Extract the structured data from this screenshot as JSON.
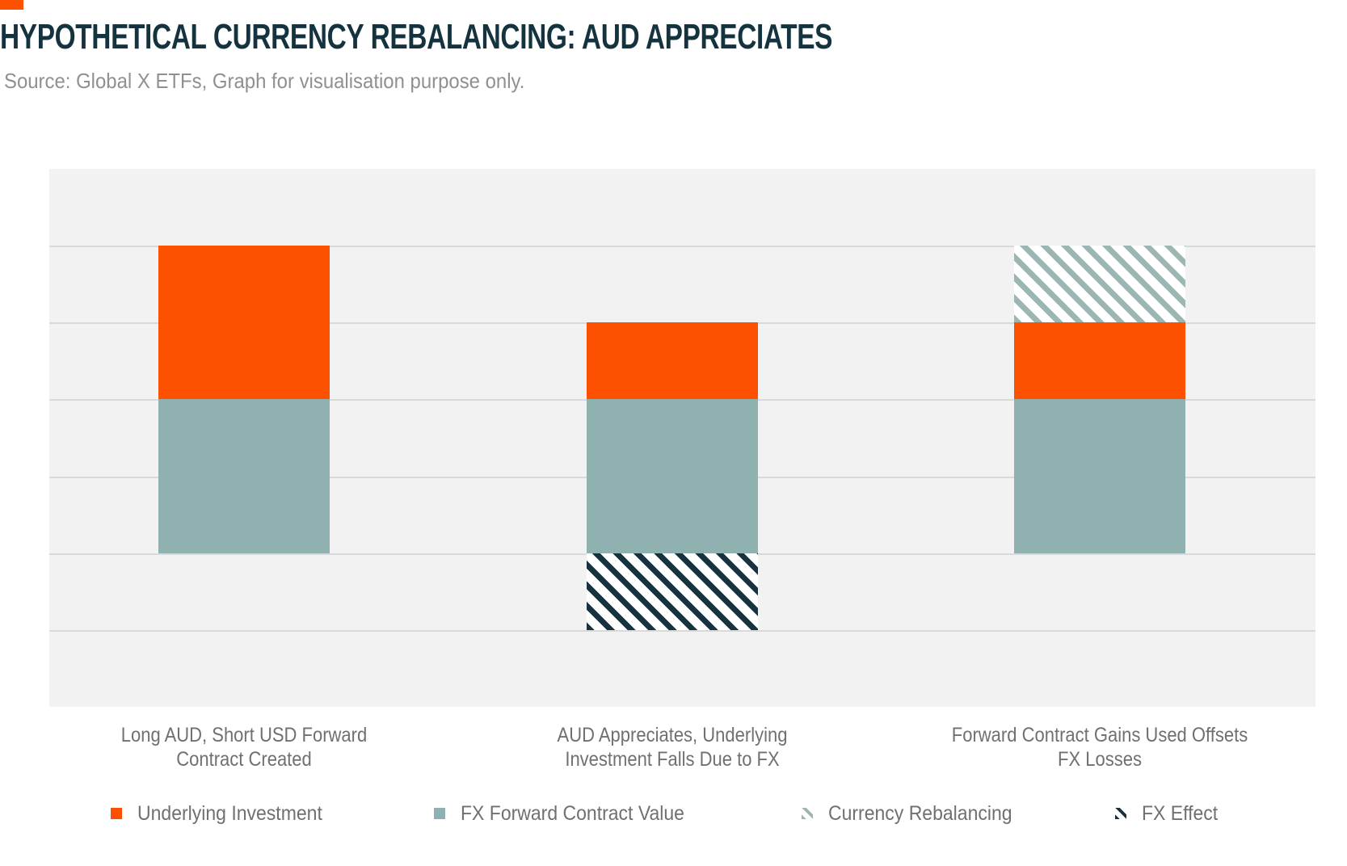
{
  "page": {
    "title": "HYPOTHETICAL CURRENCY REBALANCING: AUD APPRECIATES",
    "source_note": "Source: Global X ETFs, Graph for visualisation purpose only.",
    "accent_color": "#FC5100",
    "title_color": "#14333F"
  },
  "chart_data": {
    "type": "bar",
    "stacked": true,
    "title": "HYPOTHETICAL CURRENCY REBALANCING: AUD APPRECIATES",
    "xlabel": "",
    "ylabel": "",
    "ylim": [
      -50,
      125
    ],
    "gridline_step": 25,
    "grid": true,
    "y_axis_labels_shown": false,
    "legend_position": "bottom",
    "plot_background": "#F2F2F2",
    "gridline_color": "#D9D9D9",
    "categories": [
      "Long AUD, Short USD Forward Contract Created",
      "AUD Appreciates, Underlying Investment Falls Due to FX",
      "Forward Contract Gains Used Offsets FX Losses"
    ],
    "categories_wrapped": [
      [
        "Long AUD, Short USD Forward",
        "Contract Created"
      ],
      [
        "AUD Appreciates, Underlying",
        "Investment Falls Due to FX"
      ],
      [
        "Forward Contract Gains Used Offsets",
        "FX Losses"
      ]
    ],
    "series": [
      {
        "name": "Underlying Investment",
        "fill": "solid",
        "color": "#FC5100",
        "values": [
          50,
          25,
          25
        ]
      },
      {
        "name": "FX Forward Contract Value",
        "fill": "solid",
        "color": "#8FB2B0",
        "values": [
          50,
          50,
          50
        ]
      },
      {
        "name": "Currency Rebalancing",
        "fill": "hatch",
        "color": "#9BB6B3",
        "values": [
          0,
          0,
          25
        ]
      },
      {
        "name": "FX Effect",
        "fill": "hatch",
        "color": "#16333F",
        "values": [
          0,
          -25,
          0
        ]
      }
    ],
    "stack_order_bottom_up": [
      1,
      0,
      2,
      3
    ],
    "hatch_direction": "backslash-diagonal"
  }
}
